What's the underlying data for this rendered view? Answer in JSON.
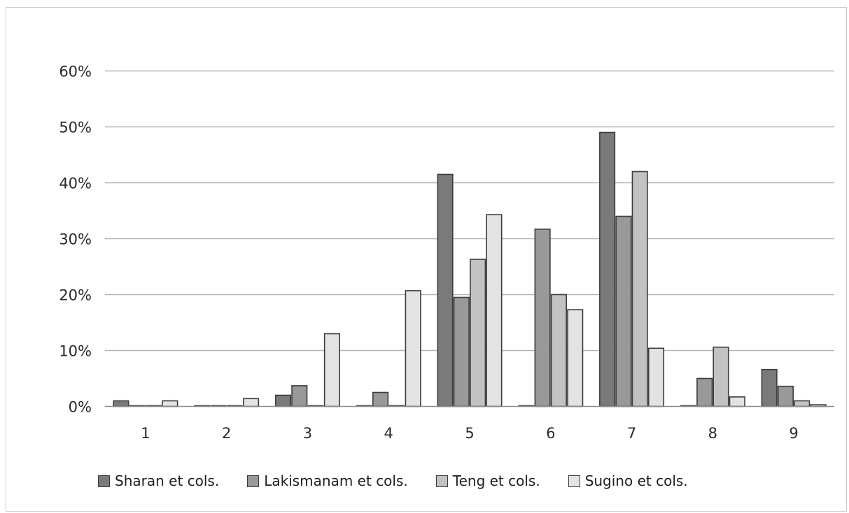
{
  "chart_data": {
    "type": "bar",
    "categories": [
      "1",
      "2",
      "3",
      "4",
      "5",
      "6",
      "7",
      "8",
      "9"
    ],
    "series": [
      {
        "name": "Sharan et cols.",
        "values": [
          1,
          0,
          2,
          0,
          41.5,
          0,
          49,
          0,
          6.6
        ],
        "color": "#7a7a7a"
      },
      {
        "name": "Lakismanam et cols.",
        "values": [
          0,
          0,
          3.7,
          2.5,
          19.5,
          31.7,
          34,
          5,
          3.6
        ],
        "color": "#999999"
      },
      {
        "name": "Teng et cols.",
        "values": [
          0,
          0,
          0,
          0,
          26.3,
          20,
          42,
          10.6,
          1
        ],
        "color": "#c2c2c2"
      },
      {
        "name": "Sugino et cols.",
        "values": [
          1,
          1.4,
          13,
          20.7,
          34.3,
          17.3,
          10.4,
          1.7,
          0.3
        ],
        "color": "#e3e3e3"
      }
    ],
    "yticks": [
      "0%",
      "10%",
      "20%",
      "30%",
      "40%",
      "50%",
      "60%"
    ],
    "ylim": [
      0,
      60
    ],
    "grid": true,
    "legend_position": "bottom",
    "title": "",
    "xlabel": "",
    "ylabel": ""
  }
}
